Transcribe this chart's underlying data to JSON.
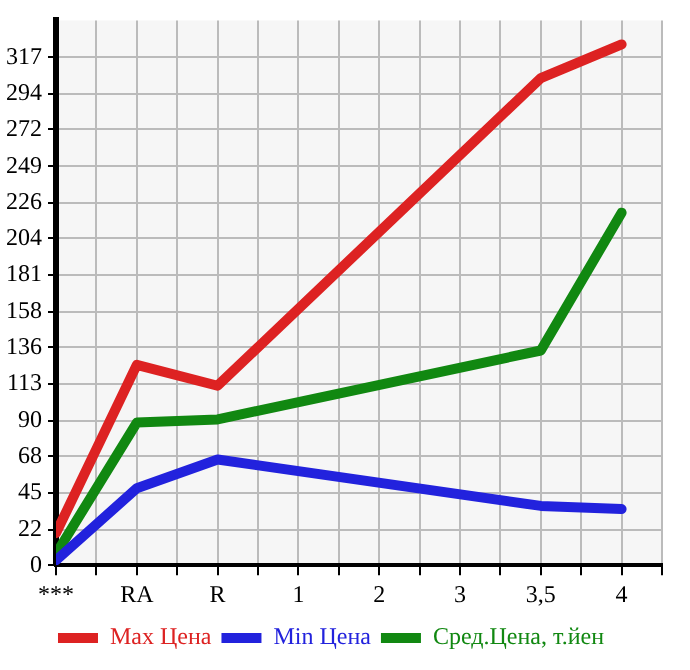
{
  "chart_data": {
    "type": "line",
    "categories": [
      "***",
      "RA",
      "R",
      "1",
      "2",
      "3",
      "3,5",
      "4"
    ],
    "series": [
      {
        "name": "Max Цена",
        "color": "#dd2222",
        "values": [
          20,
          125,
          112,
          null,
          null,
          null,
          304,
          325
        ]
      },
      {
        "name": "Min Цена",
        "color": "#2222dd",
        "values": [
          3,
          48,
          66,
          null,
          null,
          null,
          37,
          35
        ]
      },
      {
        "name": "Сред.Цена, т.йен",
        "color": "#118811",
        "values": [
          7,
          89,
          91,
          null,
          null,
          null,
          134,
          220
        ]
      }
    ],
    "ylim": [
      0,
      340
    ],
    "yticks": [
      0,
      22,
      45,
      68,
      90,
      113,
      136,
      158,
      181,
      204,
      226,
      249,
      272,
      294,
      317
    ],
    "grid": true,
    "legend": "bottom",
    "marker": "none",
    "line_style": "solid"
  }
}
